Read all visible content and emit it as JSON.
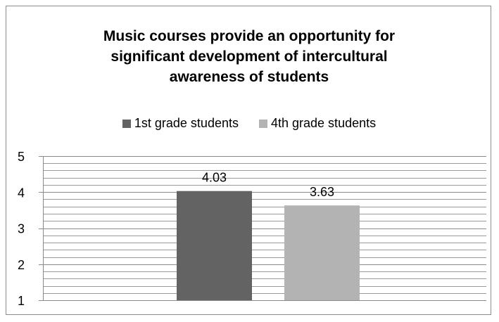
{
  "chart_data": {
    "type": "bar",
    "title_lines": [
      "Music courses provide an opportunity for",
      "significant development of intercultural",
      "awareness of students"
    ],
    "categories": [
      ""
    ],
    "series": [
      {
        "name": "1st grade students",
        "values": [
          4.03
        ],
        "color": "#636363"
      },
      {
        "name": "4th grade students",
        "values": [
          3.63
        ],
        "color": "#b3b3b3"
      }
    ],
    "ylim": [
      1,
      5
    ],
    "y_ticks": [
      "1",
      "2",
      "3",
      "4",
      "5"
    ],
    "data_labels": [
      "4.03",
      "3.63"
    ],
    "grid": true,
    "legend_position": "top"
  }
}
